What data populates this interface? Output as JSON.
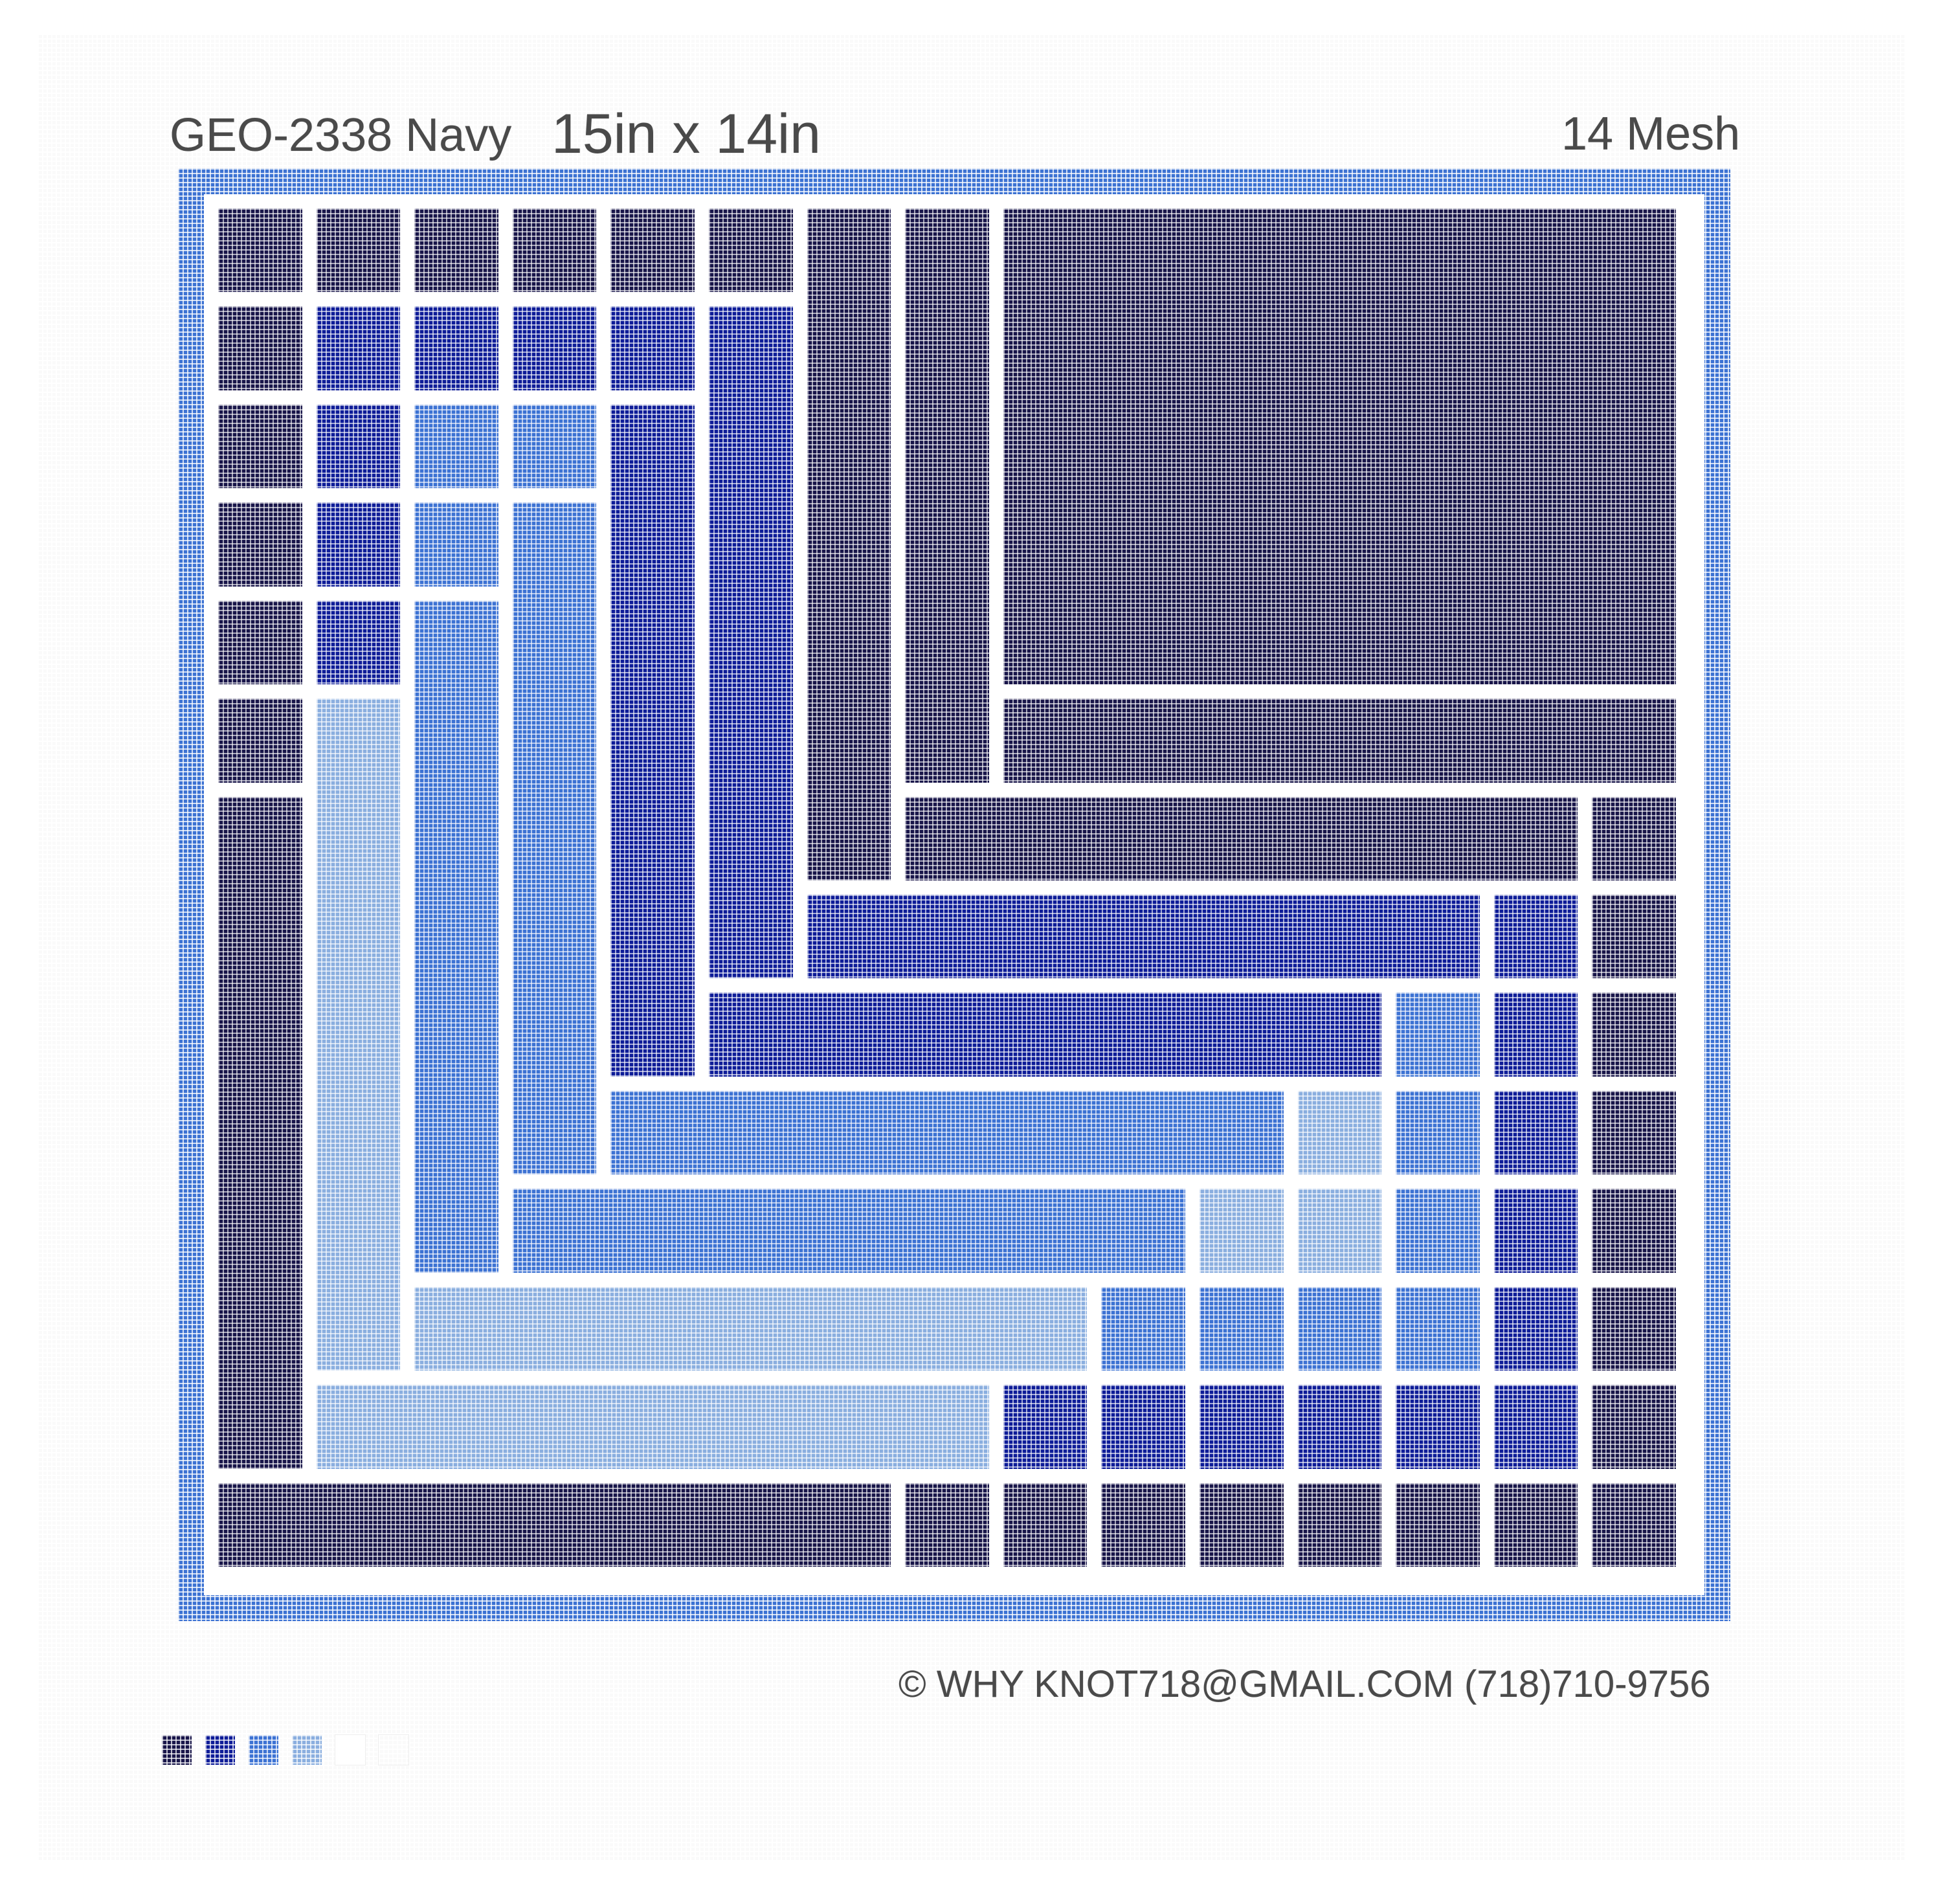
{
  "header": {
    "design_code": "GEO-2338 Navy",
    "design_size": "15in x 14in",
    "mesh": "14 Mesh"
  },
  "footer": {
    "copyright": "© WHY KNOT718@GMAIL.COM (718)710-9756"
  },
  "colors": {
    "navy": "#181549",
    "royal_blue": "#0e1c98",
    "medium_blue": "#3c72d3",
    "light_blue": "#8aaedf",
    "white": "#ffffff",
    "off_white": "#fafafa",
    "border": "#3c72d3"
  },
  "palette": [
    {
      "color": "#181549"
    },
    {
      "color": "#0e1c98"
    },
    {
      "color": "#3c72d3"
    },
    {
      "color": "#8aaedf"
    },
    {
      "color": "#ffffff"
    },
    {
      "color": "#fafafa"
    }
  ]
}
